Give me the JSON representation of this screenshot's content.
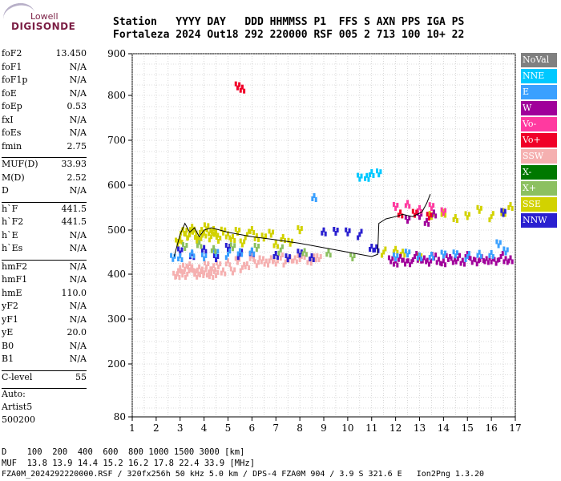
{
  "logo": {
    "line1": "Lowell",
    "line2": "DIGISONDE"
  },
  "header": {
    "line1": "Station   YYYY DAY   DDD HHMMSS P1  FFS S AXN PPS IGA PS",
    "line2": "Fortaleza 2024 Out18 292 220000 RSF 005 2 713 100 10+ 22"
  },
  "params": [
    {
      "group": 1,
      "name": "foF2",
      "value": "13.450"
    },
    {
      "group": 1,
      "name": "foF1",
      "value": "N/A"
    },
    {
      "group": 1,
      "name": "foF1p",
      "value": "N/A"
    },
    {
      "group": 1,
      "name": "foE",
      "value": "N/A"
    },
    {
      "group": 1,
      "name": "foEp",
      "value": "0.53"
    },
    {
      "group": 1,
      "name": "fxI",
      "value": "N/A"
    },
    {
      "group": 1,
      "name": "foEs",
      "value": "N/A"
    },
    {
      "group": 1,
      "name": "fmin",
      "value": "2.75"
    },
    {
      "group": 2,
      "name": "MUF(D)",
      "value": "33.93"
    },
    {
      "group": 2,
      "name": "M(D)",
      "value": "2.52"
    },
    {
      "group": 2,
      "name": "D",
      "value": "N/A"
    },
    {
      "group": 3,
      "name": "h`F",
      "value": "441.5"
    },
    {
      "group": 3,
      "name": "h`F2",
      "value": "441.5"
    },
    {
      "group": 3,
      "name": "h`E",
      "value": "N/A"
    },
    {
      "group": 3,
      "name": "h`Es",
      "value": "N/A"
    },
    {
      "group": 4,
      "name": "hmF2",
      "value": "N/A"
    },
    {
      "group": 4,
      "name": "hmF1",
      "value": "N/A"
    },
    {
      "group": 4,
      "name": "hmE",
      "value": "110.0"
    },
    {
      "group": 4,
      "name": "yF2",
      "value": "N/A"
    },
    {
      "group": 4,
      "name": "yF1",
      "value": "N/A"
    },
    {
      "group": 4,
      "name": "yE",
      "value": "20.0"
    },
    {
      "group": 4,
      "name": "B0",
      "value": "N/A"
    },
    {
      "group": 4,
      "name": "B1",
      "value": "N/A"
    },
    {
      "group": 5,
      "name": "C-level",
      "value": "55"
    }
  ],
  "auto": {
    "line1": "Auto:",
    "line2": "Artist5",
    "line3": "500200"
  },
  "legend": [
    {
      "label": "NoVal",
      "color": "#808080"
    },
    {
      "label": "NNE",
      "color": "#00c8ff"
    },
    {
      "label": "E",
      "color": "#3aa0ff"
    },
    {
      "label": "W",
      "color": "#a0009a"
    },
    {
      "label": "Vo-",
      "color": "#ff3aa0"
    },
    {
      "label": "Vo+",
      "color": "#f00028"
    },
    {
      "label": "SSW",
      "color": "#f5b0b0"
    },
    {
      "label": "X-",
      "color": "#007800"
    },
    {
      "label": "X+",
      "color": "#8cc060"
    },
    {
      "label": "SSE",
      "color": "#d2d200"
    },
    {
      "label": "NNW",
      "color": "#2a20d0"
    }
  ],
  "footer": {
    "line1": "D    100  200  400  600  800 1000 1500 3000 [km]",
    "line2": "MUF  13.8 13.9 14.4 15.2 16.2 17.8 22.4 33.9 [MHz]",
    "line3": "FZA0M_2024292220000.RSF / 320fx256h 50 kHz 5.0 km / DPS-4 FZA0M 904 / 3.9 S 321.6 E   Ion2Png 1.3.20"
  },
  "chart_data": {
    "type": "scatter",
    "xlim": [
      1,
      17
    ],
    "ylim": [
      80,
      900
    ],
    "x_ticks": [
      1,
      2,
      3,
      4,
      5,
      6,
      7,
      8,
      9,
      10,
      11,
      12,
      13,
      14,
      15,
      16,
      17
    ],
    "y_ticks": [
      80,
      200,
      300,
      400,
      500,
      600,
      700,
      800,
      900
    ],
    "grid": true,
    "legend_position": "right",
    "trace_line": {
      "x": [
        2.75,
        3.0,
        3.2,
        3.4,
        3.6,
        3.8,
        4.0,
        4.3,
        5.0,
        6.0,
        7.0,
        8.0,
        9.0,
        10.0,
        11.0,
        11.25,
        11.3,
        11.6,
        12.0,
        12.3,
        12.7,
        13.1,
        13.3,
        13.45
      ],
      "y": [
        440,
        490,
        515,
        495,
        505,
        485,
        500,
        505,
        495,
        485,
        478,
        470,
        460,
        450,
        440,
        445,
        515,
        525,
        530,
        535,
        530,
        540,
        560,
        580
      ]
    },
    "echo_series": [
      {
        "name": "SSW",
        "x": [
          2.8,
          2.9,
          3.0,
          3.1,
          3.2,
          3.3,
          3.4,
          3.5,
          3.6,
          3.7,
          3.8,
          3.9,
          4.0,
          4.1,
          4.2,
          4.3,
          4.4,
          4.5,
          4.6,
          4.8,
          5.0,
          5.2,
          5.4,
          5.6,
          5.8,
          6.0,
          6.2,
          6.4,
          6.6,
          6.8,
          7.0,
          7.2,
          7.4,
          7.6,
          7.8,
          8.0,
          8.2,
          8.4,
          8.6,
          8.8
        ],
        "y": [
          395,
          400,
          410,
          405,
          415,
          400,
          420,
          410,
          405,
          395,
          415,
          400,
          410,
          420,
          405,
          398,
          412,
          402,
          418,
          408,
          425,
          410,
          430,
          415,
          420,
          435,
          425,
          430,
          428,
          432,
          430,
          440,
          428,
          435,
          430,
          438,
          440,
          432,
          436,
          440
        ]
      },
      {
        "name": "SSE",
        "x": [
          2.9,
          3.0,
          3.1,
          3.2,
          3.3,
          3.4,
          3.5,
          3.6,
          3.7,
          3.8,
          3.9,
          4.0,
          4.1,
          4.2,
          4.3,
          4.4,
          4.5,
          4.6,
          4.8,
          5.0,
          5.2,
          5.4,
          5.6,
          5.8,
          6.0,
          6.2,
          6.5,
          6.8,
          7.0,
          7.3,
          7.6,
          8.0,
          11.5,
          12.0,
          12.3,
          13.0,
          13.5,
          14.0,
          14.5,
          15.0,
          15.5,
          16.0,
          16.5,
          16.8
        ],
        "y": [
          470,
          480,
          495,
          500,
          485,
          490,
          505,
          495,
          480,
          475,
          500,
          490,
          510,
          495,
          485,
          500,
          490,
          480,
          495,
          490,
          480,
          500,
          470,
          490,
          500,
          480,
          485,
          490,
          470,
          480,
          475,
          500,
          450,
          455,
          445,
          440,
          530,
          540,
          525,
          535,
          545,
          530,
          540,
          550
        ]
      },
      {
        "name": "W",
        "x": [
          11.8,
          12.0,
          12.2,
          12.4,
          12.6,
          12.8,
          13.0,
          13.2,
          13.4,
          13.6,
          13.8,
          14.0,
          14.2,
          14.4,
          14.6,
          14.8,
          15.0,
          15.2,
          15.4,
          15.6,
          15.8,
          16.0,
          16.2,
          16.4,
          16.6,
          16.8,
          12.5,
          13.0,
          13.3,
          13.6
        ],
        "y": [
          430,
          428,
          435,
          430,
          425,
          440,
          435,
          430,
          428,
          438,
          432,
          425,
          440,
          430,
          435,
          428,
          440,
          432,
          425,
          438,
          430,
          435,
          428,
          440,
          432,
          430,
          525,
          530,
          520,
          535
        ]
      },
      {
        "name": "NNW",
        "x": [
          3.0,
          3.5,
          4.0,
          4.5,
          5.0,
          5.5,
          6.0,
          7.0,
          7.5,
          8.0,
          8.5,
          9.0,
          9.5,
          10.0,
          10.5,
          11.0,
          11.2,
          16.5
        ],
        "y": [
          450,
          445,
          455,
          440,
          460,
          445,
          450,
          440,
          438,
          445,
          440,
          495,
          500,
          495,
          490,
          460,
          455,
          540
        ]
      },
      {
        "name": "E",
        "x": [
          2.7,
          3.0,
          3.5,
          4.0,
          4.5,
          5.0,
          5.5,
          6.0,
          12.0,
          12.5,
          13.0,
          13.5,
          14.0,
          14.5,
          15.0,
          15.5,
          16.0,
          16.3,
          16.6,
          8.6
        ],
        "y": [
          435,
          440,
          445,
          442,
          448,
          445,
          450,
          448,
          440,
          445,
          442,
          440,
          448,
          445,
          440,
          446,
          442,
          470,
          450,
          575
        ]
      },
      {
        "name": "NNE",
        "x": [
          10.5,
          10.8,
          11.0,
          11.3
        ],
        "y": [
          615,
          620,
          625,
          630
        ]
      },
      {
        "name": "Vo-",
        "x": [
          12.0,
          12.5,
          13.0,
          13.5,
          14.0
        ],
        "y": [
          550,
          560,
          545,
          555,
          540
        ]
      },
      {
        "name": "Vo+",
        "x": [
          5.4,
          5.6,
          12.2,
          12.8,
          13.4
        ],
        "y": [
          820,
          818,
          535,
          540,
          530
        ]
      },
      {
        "name": "X+",
        "x": [
          3.2,
          3.8,
          4.4,
          5.2,
          6.2,
          7.2,
          8.2,
          9.2,
          10.2
        ],
        "y": [
          460,
          470,
          455,
          465,
          460,
          455,
          450,
          445,
          440
        ]
      }
    ]
  }
}
